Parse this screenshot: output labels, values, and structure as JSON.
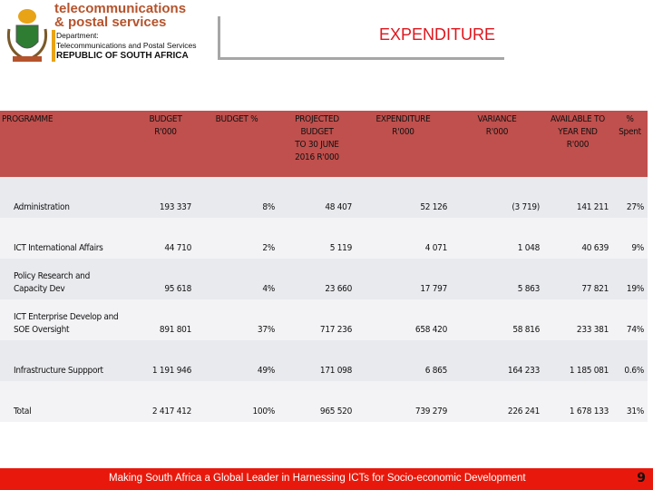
{
  "logo": {
    "brand_line_1": "telecommunications",
    "brand_line_2": "& postal services",
    "department_label": "Department:",
    "department_name": "Telecommunications and Postal Services",
    "country": "REPUBLIC OF SOUTH AFRICA"
  },
  "header": {
    "title": "EXPENDITURE"
  },
  "table": {
    "columns": [
      [
        "PROGRAMME"
      ],
      [
        "BUDGET",
        "R'000"
      ],
      [
        "BUDGET %"
      ],
      [
        "PROJECTED BUDGET",
        "TO 30 JUNE",
        "2016 R'000"
      ],
      [
        "EXPENDITURE",
        "R'000"
      ],
      [
        "VARIANCE",
        "R'000"
      ],
      [
        "AVAILABLE TO",
        "YEAR END",
        "R'000"
      ],
      [
        "% Spent"
      ]
    ],
    "rows": [
      [
        [
          "Administration"
        ],
        "193 337",
        "8%",
        "48 407",
        "52 126",
        "(3 719)",
        "141 211",
        "27%"
      ],
      [
        [
          "ICT International Affairs"
        ],
        "44 710",
        "2%",
        "5 119",
        "4 071",
        "1 048",
        "40 639",
        "9%"
      ],
      [
        [
          "Policy Research and",
          "Capacity Dev"
        ],
        "95 618",
        "4%",
        "23 660",
        "17 797",
        "5 863",
        "77 821",
        "19%"
      ],
      [
        [
          "ICT Enterprise Develop and",
          "SOE Oversight"
        ],
        "891 801",
        "37%",
        "717 236",
        "658 420",
        "58 816",
        "233 381",
        "74%"
      ],
      [
        [
          "Infrastructure Suppport"
        ],
        "1 191 946",
        "49%",
        "171 098",
        "6 865",
        "164 233",
        "1 185 081",
        "0.6%"
      ],
      [
        [
          "Total"
        ],
        "2 417 412",
        "100%",
        "965 520",
        "739 279",
        "226 241",
        "1 678 133",
        "31%"
      ]
    ]
  },
  "footer": {
    "slogan": "Making South Africa a Global Leader in Harnessing ICTs for Socio-economic Development",
    "page": "9"
  }
}
